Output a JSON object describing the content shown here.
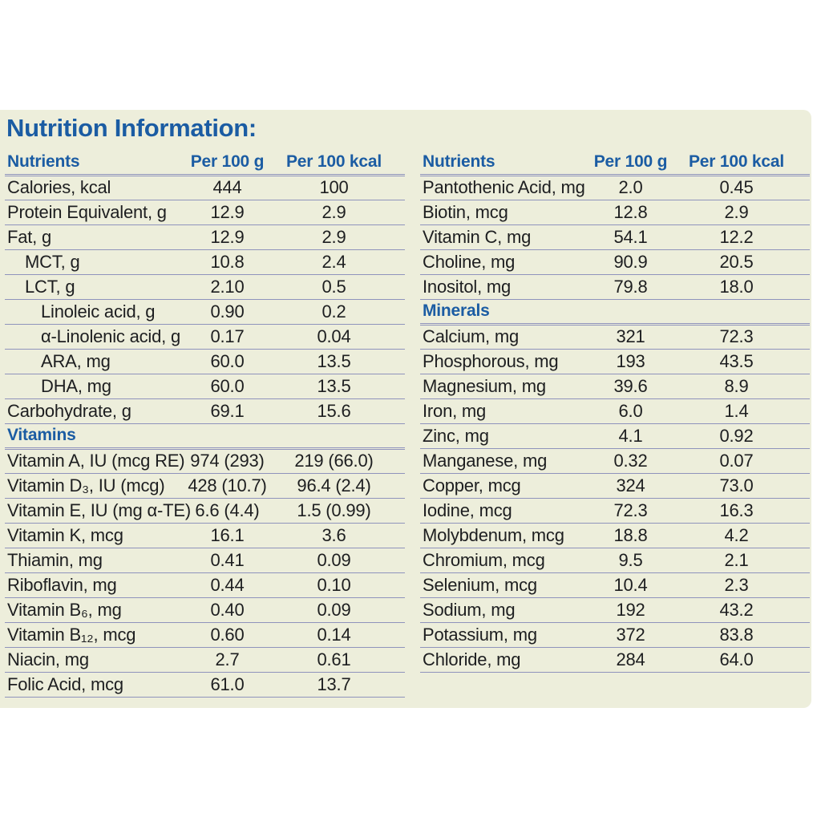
{
  "page": {
    "title": "Nutrition Information:"
  },
  "colors": {
    "background": "#ffffff",
    "panel_background": "#edeedb",
    "accent_blue": "#1b5ca3",
    "text": "#1d1e20",
    "divider": "#8f93bc"
  },
  "columns": {
    "nutrient": "Nutrients",
    "per_100g": "Per 100 g",
    "per_100kcal": "Per 100 kcal"
  },
  "tables": [
    {
      "id": "left",
      "sections": [
        {
          "header": "",
          "rows": [
            {
              "label": "Calories, kcal",
              "indent": 0,
              "per_100g": "444",
              "per_100kcal": "100"
            },
            {
              "label": "Protein Equivalent, g",
              "indent": 0,
              "per_100g": "12.9",
              "per_100kcal": "2.9"
            },
            {
              "label": "Fat, g",
              "indent": 0,
              "per_100g": "12.9",
              "per_100kcal": "2.9"
            },
            {
              "label": "MCT, g",
              "indent": 1,
              "per_100g": "10.8",
              "per_100kcal": "2.4"
            },
            {
              "label": "LCT, g",
              "indent": 1,
              "per_100g": "2.10",
              "per_100kcal": "0.5"
            },
            {
              "label": "Linoleic acid, g",
              "indent": 2,
              "per_100g": "0.90",
              "per_100kcal": "0.2"
            },
            {
              "label": "α-Linolenic acid, g",
              "indent": 2,
              "per_100g": "0.17",
              "per_100kcal": "0.04"
            },
            {
              "label": "ARA, mg",
              "indent": 2,
              "per_100g": "60.0",
              "per_100kcal": "13.5"
            },
            {
              "label": "DHA, mg",
              "indent": 2,
              "per_100g": "60.0",
              "per_100kcal": "13.5"
            },
            {
              "label": "Carbohydrate, g",
              "indent": 0,
              "per_100g": "69.1",
              "per_100kcal": "15.6"
            }
          ]
        },
        {
          "header": "Vitamins",
          "rows": [
            {
              "label": "Vitamin A, IU (mcg RE)",
              "indent": 0,
              "per_100g": "974 (293)",
              "per_100kcal": "219 (66.0)"
            },
            {
              "label": "Vitamin D₃, IU (mcg)",
              "indent": 0,
              "per_100g": "428 (10.7)",
              "per_100kcal": "96.4 (2.4)"
            },
            {
              "label": "Vitamin E, IU (mg α-TE)",
              "indent": 0,
              "per_100g": "6.6 (4.4)",
              "per_100kcal": "1.5 (0.99)"
            },
            {
              "label": "Vitamin K, mcg",
              "indent": 0,
              "per_100g": "16.1",
              "per_100kcal": "3.6"
            },
            {
              "label": "Thiamin, mg",
              "indent": 0,
              "per_100g": "0.41",
              "per_100kcal": "0.09"
            },
            {
              "label": "Riboflavin, mg",
              "indent": 0,
              "per_100g": "0.44",
              "per_100kcal": "0.10"
            },
            {
              "label": "Vitamin B₆, mg",
              "indent": 0,
              "per_100g": "0.40",
              "per_100kcal": "0.09"
            },
            {
              "label": "Vitamin B₁₂, mcg",
              "indent": 0,
              "per_100g": "0.60",
              "per_100kcal": "0.14"
            },
            {
              "label": "Niacin, mg",
              "indent": 0,
              "per_100g": "2.7",
              "per_100kcal": "0.61"
            },
            {
              "label": "Folic Acid, mcg",
              "indent": 0,
              "per_100g": "61.0",
              "per_100kcal": "13.7"
            }
          ]
        }
      ]
    },
    {
      "id": "right",
      "sections": [
        {
          "header": "",
          "rows": [
            {
              "label": "Pantothenic Acid, mg",
              "indent": 0,
              "per_100g": "2.0",
              "per_100kcal": "0.45"
            },
            {
              "label": "Biotin, mcg",
              "indent": 0,
              "per_100g": "12.8",
              "per_100kcal": "2.9"
            },
            {
              "label": "Vitamin C, mg",
              "indent": 0,
              "per_100g": "54.1",
              "per_100kcal": "12.2"
            },
            {
              "label": "Choline, mg",
              "indent": 0,
              "per_100g": "90.9",
              "per_100kcal": "20.5"
            },
            {
              "label": "Inositol, mg",
              "indent": 0,
              "per_100g": "79.8",
              "per_100kcal": "18.0"
            }
          ]
        },
        {
          "header": "Minerals",
          "rows": [
            {
              "label": "Calcium, mg",
              "indent": 0,
              "per_100g": "321",
              "per_100kcal": "72.3"
            },
            {
              "label": "Phosphorous, mg",
              "indent": 0,
              "per_100g": "193",
              "per_100kcal": "43.5"
            },
            {
              "label": "Magnesium, mg",
              "indent": 0,
              "per_100g": "39.6",
              "per_100kcal": "8.9"
            },
            {
              "label": "Iron, mg",
              "indent": 0,
              "per_100g": "6.0",
              "per_100kcal": "1.4"
            },
            {
              "label": "Zinc, mg",
              "indent": 0,
              "per_100g": "4.1",
              "per_100kcal": "0.92"
            },
            {
              "label": "Manganese, mg",
              "indent": 0,
              "per_100g": "0.32",
              "per_100kcal": "0.07"
            },
            {
              "label": "Copper, mcg",
              "indent": 0,
              "per_100g": "324",
              "per_100kcal": "73.0"
            },
            {
              "label": "Iodine, mcg",
              "indent": 0,
              "per_100g": "72.3",
              "per_100kcal": "16.3"
            },
            {
              "label": "Molybdenum, mcg",
              "indent": 0,
              "per_100g": "18.8",
              "per_100kcal": "4.2"
            },
            {
              "label": "Chromium, mcg",
              "indent": 0,
              "per_100g": "9.5",
              "per_100kcal": "2.1"
            },
            {
              "label": "Selenium, mcg",
              "indent": 0,
              "per_100g": "10.4",
              "per_100kcal": "2.3"
            },
            {
              "label": "Sodium, mg",
              "indent": 0,
              "per_100g": "192",
              "per_100kcal": "43.2"
            },
            {
              "label": "Potassium, mg",
              "indent": 0,
              "per_100g": "372",
              "per_100kcal": "83.8"
            },
            {
              "label": "Chloride, mg",
              "indent": 0,
              "per_100g": "284",
              "per_100kcal": "64.0"
            }
          ]
        }
      ]
    }
  ]
}
